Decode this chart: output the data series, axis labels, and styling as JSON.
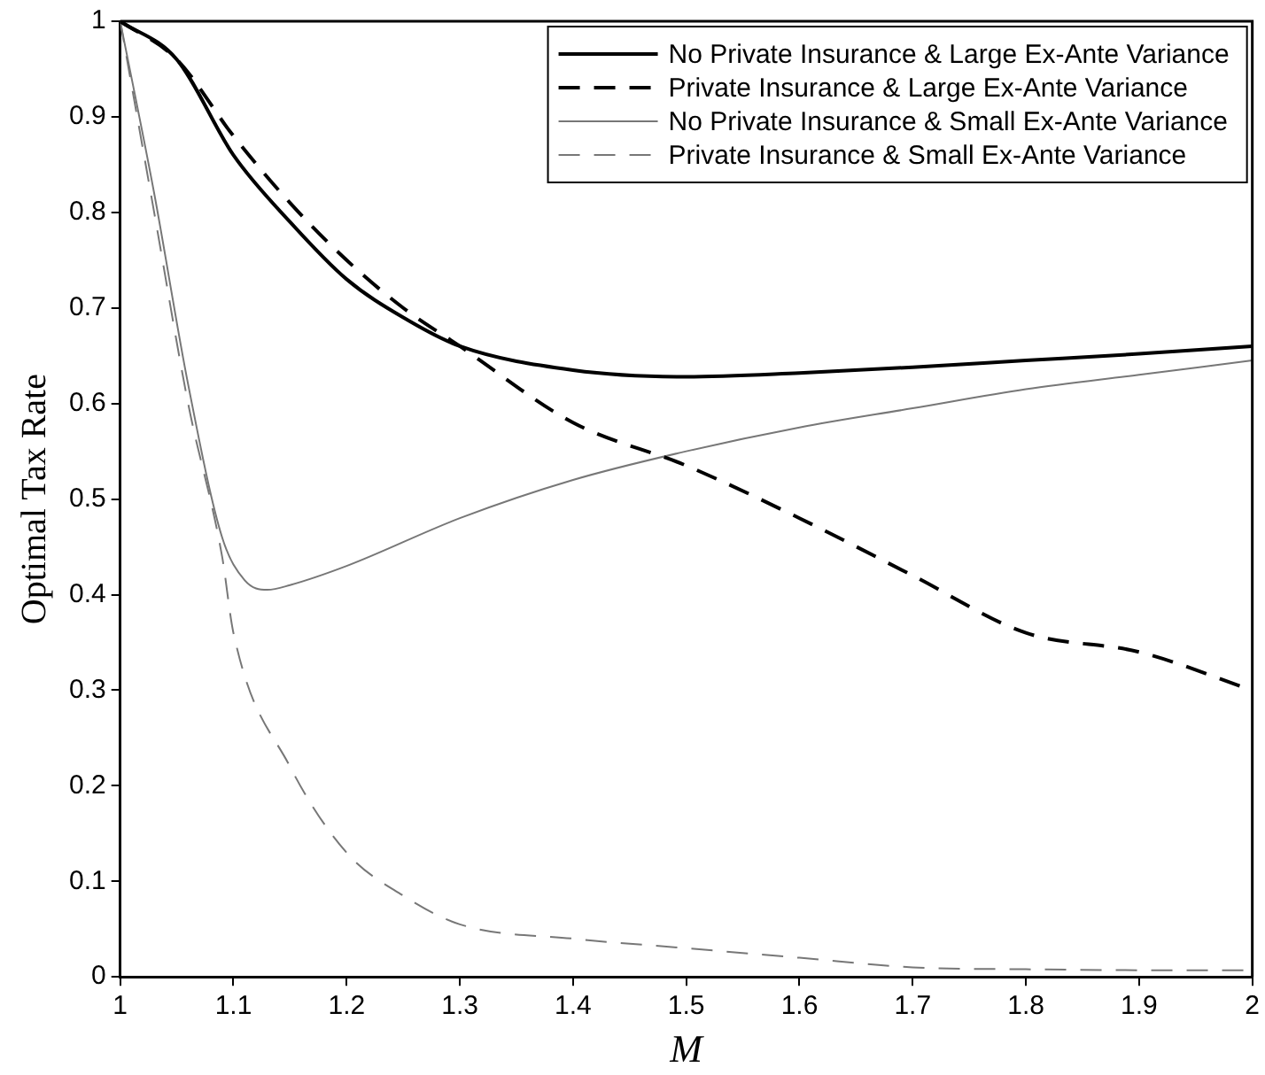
{
  "chart_data": {
    "type": "line",
    "xlabel": "M",
    "ylabel": "Optimal Tax Rate",
    "xlim": [
      1,
      2
    ],
    "ylim": [
      0,
      1
    ],
    "xticks": [
      1,
      1.1,
      1.2,
      1.3,
      1.4,
      1.5,
      1.6,
      1.7,
      1.8,
      1.9,
      2
    ],
    "yticks": [
      0,
      0.1,
      0.2,
      0.3,
      0.4,
      0.5,
      0.6,
      0.7,
      0.8,
      0.9,
      1
    ],
    "grid": false,
    "legend": "top right",
    "marker": "none",
    "series": [
      {
        "name": "No Private Insurance & Large Ex-Ante Variance",
        "color": "#000000",
        "line_style": "solid",
        "x": [
          1,
          1.05,
          1.1,
          1.15,
          1.2,
          1.25,
          1.3,
          1.4,
          1.5,
          1.6,
          1.7,
          1.8,
          1.9,
          2
        ],
        "values": [
          1,
          0.96,
          0.86,
          0.79,
          0.73,
          0.69,
          0.66,
          0.635,
          0.628,
          0.632,
          0.638,
          0.645,
          0.652,
          0.66
        ]
      },
      {
        "name": "Private Insurance & Large Ex-Ante Variance",
        "color": "#000000",
        "line_style": "dashed",
        "x": [
          1,
          1.05,
          1.1,
          1.15,
          1.2,
          1.25,
          1.3,
          1.4,
          1.5,
          1.6,
          1.7,
          1.8,
          1.9,
          2
        ],
        "values": [
          1,
          0.96,
          0.88,
          0.81,
          0.75,
          0.7,
          0.66,
          0.58,
          0.535,
          0.48,
          0.42,
          0.36,
          0.34,
          0.3
        ]
      },
      {
        "name": "No Private Insurance & Small Ex-Ante Variance",
        "color": "#777777",
        "line_style": "solid",
        "x": [
          1,
          1.03,
          1.06,
          1.09,
          1.11,
          1.13,
          1.15,
          1.2,
          1.3,
          1.4,
          1.5,
          1.6,
          1.7,
          1.8,
          1.9,
          2
        ],
        "values": [
          1,
          0.82,
          0.62,
          0.46,
          0.415,
          0.405,
          0.41,
          0.43,
          0.48,
          0.52,
          0.55,
          0.575,
          0.595,
          0.615,
          0.63,
          0.645
        ]
      },
      {
        "name": "Private Insurance & Small Ex-Ante Variance",
        "color": "#777777",
        "line_style": "dashed",
        "x": [
          1,
          1.03,
          1.06,
          1.09,
          1.1,
          1.15,
          1.2,
          1.25,
          1.3,
          1.4,
          1.5,
          1.6,
          1.7,
          1.8,
          1.9,
          2
        ],
        "values": [
          1,
          0.8,
          0.6,
          0.44,
          0.36,
          0.22,
          0.13,
          0.085,
          0.055,
          0.04,
          0.03,
          0.02,
          0.01,
          0.008,
          0.007,
          0.007
        ]
      }
    ]
  }
}
